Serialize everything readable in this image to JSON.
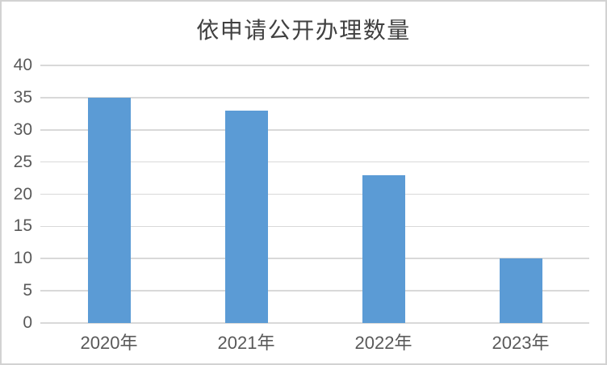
{
  "window": {
    "background_color": "#ffffff",
    "border_color": "#d2d2d2"
  },
  "chart_data": {
    "type": "bar",
    "title": "依申请公开办理数量",
    "categories": [
      "2020年",
      "2021年",
      "2022年",
      "2023年"
    ],
    "values": [
      35,
      33,
      23,
      10
    ],
    "xlabel": "",
    "ylabel": "",
    "ylim": [
      0,
      40
    ],
    "yticks": [
      0,
      5,
      10,
      15,
      20,
      25,
      30,
      35,
      40
    ],
    "grid": "horizontal-only",
    "legend": "none",
    "data_labels": "none",
    "colors": {
      "bar": "#5b9bd5",
      "gridline": "#d9d9d9",
      "axis_text": "#595959",
      "title_text": "#404040"
    }
  }
}
